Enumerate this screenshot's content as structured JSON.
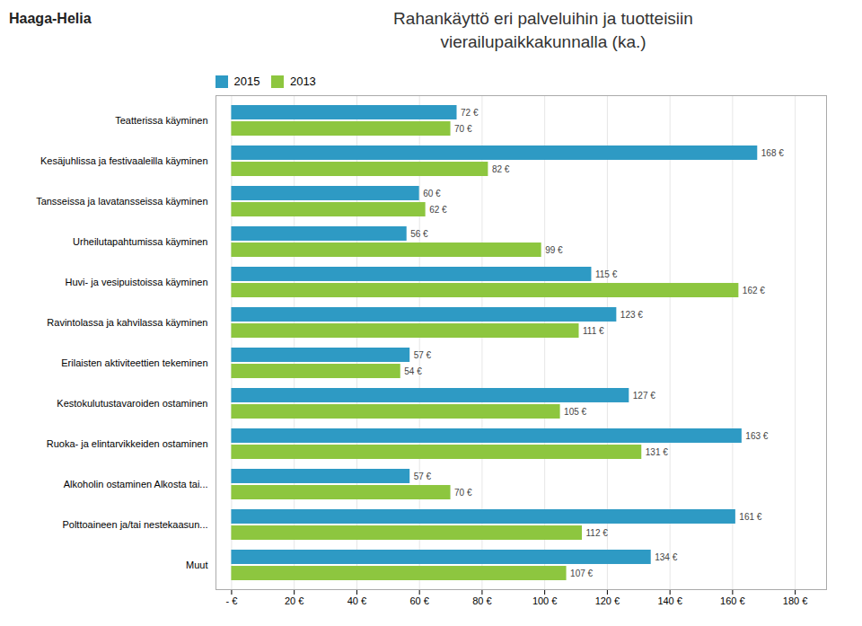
{
  "chart_data": {
    "type": "bar",
    "orientation": "horizontal",
    "title": "Rahankäyttö eri palveluihin ja tuotteisiin",
    "subtitle": "vierailupaikkakunnalla (ka.)",
    "annotations": [
      {
        "text": "Haaga-Helia"
      }
    ],
    "categories": [
      "Teatterissa käyminen",
      "Kesäjuhlissa ja festivaaleilla käyminen",
      "Tansseissa ja lavatansseissa käyminen",
      "Urheilutapahtumissa käyminen",
      "Huvi- ja vesipuistoissa käyminen",
      "Ravintolassa ja kahvilassa käyminen",
      "Erilaisten aktiviteettien tekeminen",
      "Kestokulutustavaroiden ostaminen",
      "Ruoka- ja elintarvikkeiden ostaminen",
      "Alkoholin ostaminen Alkosta tai...",
      "Polttoaineen ja/tai nestekaasun...",
      "Muut"
    ],
    "series": [
      {
        "name": "2015",
        "color": "#2E9AC4",
        "values": [
          72,
          168,
          60,
          56,
          115,
          123,
          57,
          127,
          163,
          57,
          161,
          134
        ],
        "value_labels": [
          "72 €",
          "168 €",
          "60 €",
          "56 €",
          "115 €",
          "123 €",
          "57 €",
          "127 €",
          "163 €",
          "57 €",
          "161 €",
          "134 €"
        ]
      },
      {
        "name": "2013",
        "color": "#8DC63F",
        "values": [
          70,
          82,
          62,
          99,
          162,
          111,
          54,
          105,
          131,
          70,
          112,
          107
        ],
        "value_labels": [
          "70 €",
          "82 €",
          "62 €",
          "99 €",
          "162 €",
          "111 €",
          "54 €",
          "105 €",
          "131 €",
          "70 €",
          "112 €",
          "107 €"
        ]
      }
    ],
    "xlim": [
      -5,
      190
    ],
    "xticks": [
      {
        "value": 0,
        "label": "- €"
      },
      {
        "value": 20,
        "label": "20 €"
      },
      {
        "value": 40,
        "label": "40 €"
      },
      {
        "value": 60,
        "label": "60 €"
      },
      {
        "value": 80,
        "label": "80 €"
      },
      {
        "value": 100,
        "label": "100 €"
      },
      {
        "value": 120,
        "label": "120 €"
      },
      {
        "value": 140,
        "label": "140 €"
      },
      {
        "value": 160,
        "label": "160 €"
      },
      {
        "value": 180,
        "label": "180 €"
      }
    ],
    "grid": true,
    "legend": "upper left",
    "data_labels": true
  }
}
